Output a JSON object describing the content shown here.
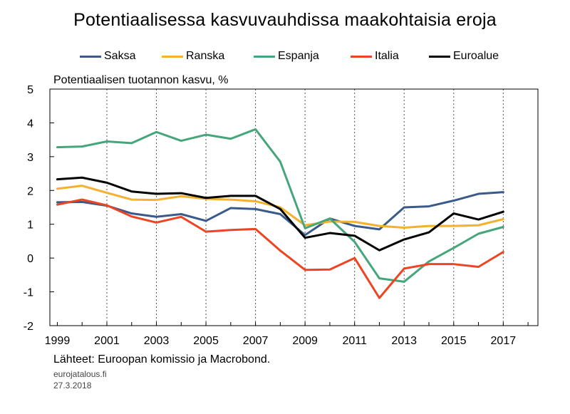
{
  "chart_data": {
    "type": "line",
    "title": "Potentiaalisessa kasvuvauhdissa maakohtaisia eroja",
    "ylabel": "Potentiaalisen tuotannon kasvu, %",
    "xlabel": "",
    "x": [
      1999,
      2000,
      2001,
      2002,
      2003,
      2004,
      2005,
      2006,
      2007,
      2008,
      2009,
      2010,
      2011,
      2012,
      2013,
      2014,
      2015,
      2016,
      2017
    ],
    "xticks": [
      "1999",
      "2001",
      "2003",
      "2005",
      "2007",
      "2009",
      "2011",
      "2013",
      "2015",
      "2017"
    ],
    "yticks": [
      "5",
      "4",
      "3",
      "2",
      "1",
      "0",
      "-1",
      "-2"
    ],
    "ylim": [
      -2,
      5
    ],
    "xlim": [
      1998.7,
      2018.4
    ],
    "grid": "x-vertical-dotted",
    "legend": "top",
    "series": [
      {
        "name": "Saksa",
        "color": "#3a5a8c",
        "values": [
          1.65,
          1.66,
          1.55,
          1.32,
          1.22,
          1.3,
          1.1,
          1.48,
          1.45,
          1.3,
          0.68,
          1.17,
          0.95,
          0.85,
          1.5,
          1.53,
          1.7,
          1.9,
          1.95
        ]
      },
      {
        "name": "Ranska",
        "color": "#f5b02e",
        "values": [
          2.05,
          2.14,
          1.93,
          1.73,
          1.72,
          1.83,
          1.75,
          1.73,
          1.68,
          1.5,
          0.97,
          1.08,
          1.07,
          0.95,
          0.9,
          0.95,
          0.95,
          0.97,
          1.15
        ]
      },
      {
        "name": "Espanja",
        "color": "#45a57b",
        "values": [
          3.28,
          3.3,
          3.45,
          3.4,
          3.73,
          3.47,
          3.65,
          3.53,
          3.81,
          2.85,
          0.88,
          1.17,
          0.48,
          -0.6,
          -0.7,
          -0.1,
          0.3,
          0.72,
          0.92
        ]
      },
      {
        "name": "Italia",
        "color": "#ee4422",
        "values": [
          1.58,
          1.73,
          1.56,
          1.23,
          1.05,
          1.22,
          0.78,
          0.83,
          0.86,
          0.22,
          -0.35,
          -0.34,
          0.0,
          -1.18,
          -0.31,
          -0.18,
          -0.18,
          -0.26,
          0.18
        ]
      },
      {
        "name": "Euroalue",
        "color": "#000000",
        "values": [
          2.33,
          2.38,
          2.23,
          1.97,
          1.9,
          1.92,
          1.78,
          1.84,
          1.84,
          1.45,
          0.6,
          0.74,
          0.66,
          0.23,
          0.55,
          0.76,
          1.32,
          1.14,
          1.37
        ]
      }
    ]
  },
  "footer": {
    "source": "Lähteet: Euroopan komissio ja Macrobond.",
    "site": "eurojatalous.fi",
    "date": "27.3.2018"
  }
}
